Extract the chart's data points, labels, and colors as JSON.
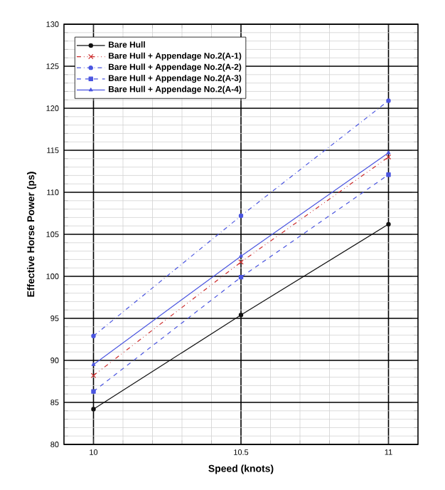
{
  "chart_data": {
    "type": "line",
    "xlabel": "Speed (knots)",
    "ylabel": "Effective Horse Power (ps)",
    "x": [
      10,
      10.5,
      11
    ],
    "xlim": [
      9.9,
      11.1
    ],
    "xticks": [
      10,
      10.5,
      11
    ],
    "ylim": [
      80,
      130
    ],
    "yticks": [
      80,
      85,
      90,
      95,
      100,
      105,
      110,
      115,
      120,
      125,
      130
    ],
    "grid": true,
    "legend": "top left",
    "series": [
      {
        "name": "Bare Hull",
        "color": "#111111",
        "values": [
          84.2,
          95.4,
          106.2
        ],
        "marker": "circle",
        "line_style": "solid"
      },
      {
        "name": "Bare Hull + Appendage No.2(A-1)",
        "color": "#cc2a2a",
        "values": [
          88.2,
          101.7,
          114.2
        ],
        "marker": "cross",
        "line_style": "dashdotdot"
      },
      {
        "name": "Bare Hull + Appendage No.2(A-2)",
        "color": "#4a55e0",
        "values": [
          92.9,
          107.2,
          120.9
        ],
        "marker": "circle",
        "line_style": "dashdot"
      },
      {
        "name": "Bare Hull + Appendage No.2(A-3)",
        "color": "#4a55e0",
        "values": [
          86.3,
          99.9,
          112.1
        ],
        "marker": "square",
        "line_style": "dashed"
      },
      {
        "name": "Bare Hull + Appendage No.2(A-4)",
        "color": "#4a55e0",
        "values": [
          89.5,
          102.4,
          114.7
        ],
        "marker": "triangle",
        "line_style": "solid"
      }
    ]
  }
}
